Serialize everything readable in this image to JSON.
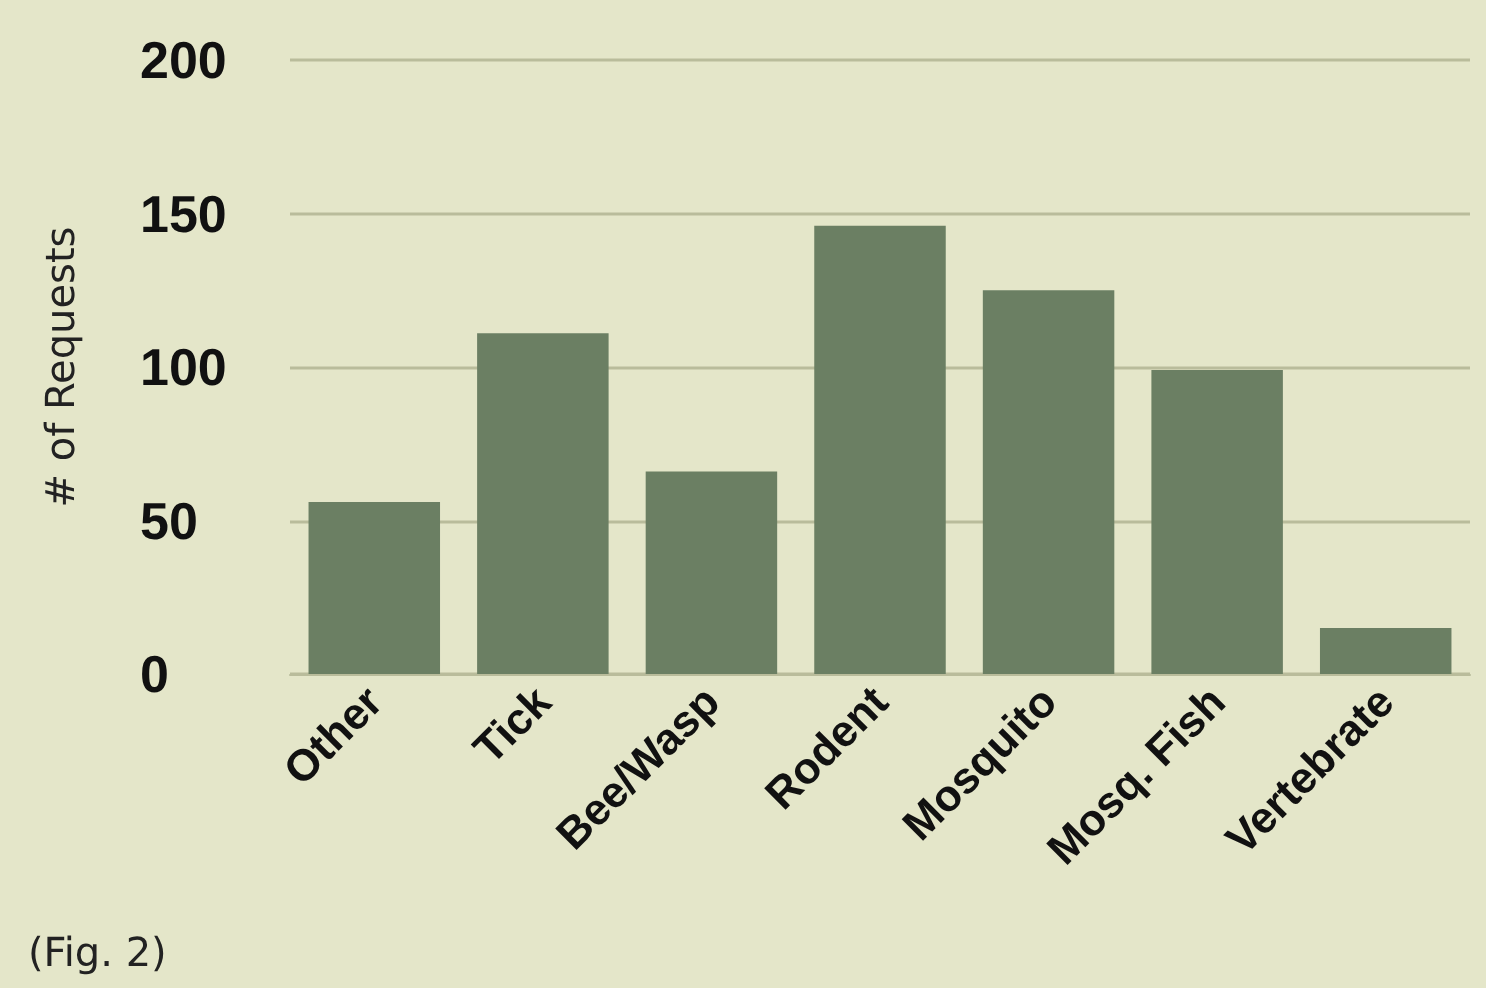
{
  "chart_data": {
    "type": "bar",
    "ylabel": "# of Requests",
    "categories": [
      "Other",
      "Tick",
      "Bee/Wasp",
      "Rodent",
      "Mosquito",
      "Mosq. Fish",
      "Vertebrate"
    ],
    "values": [
      56,
      111,
      66,
      146,
      125,
      99,
      15
    ],
    "color": "#6b7f63",
    "ylim": [
      0,
      200
    ],
    "yticks": [
      0,
      50,
      100,
      150,
      200
    ],
    "grid": "y",
    "annotations": [
      "(Fig. 2)"
    ]
  }
}
